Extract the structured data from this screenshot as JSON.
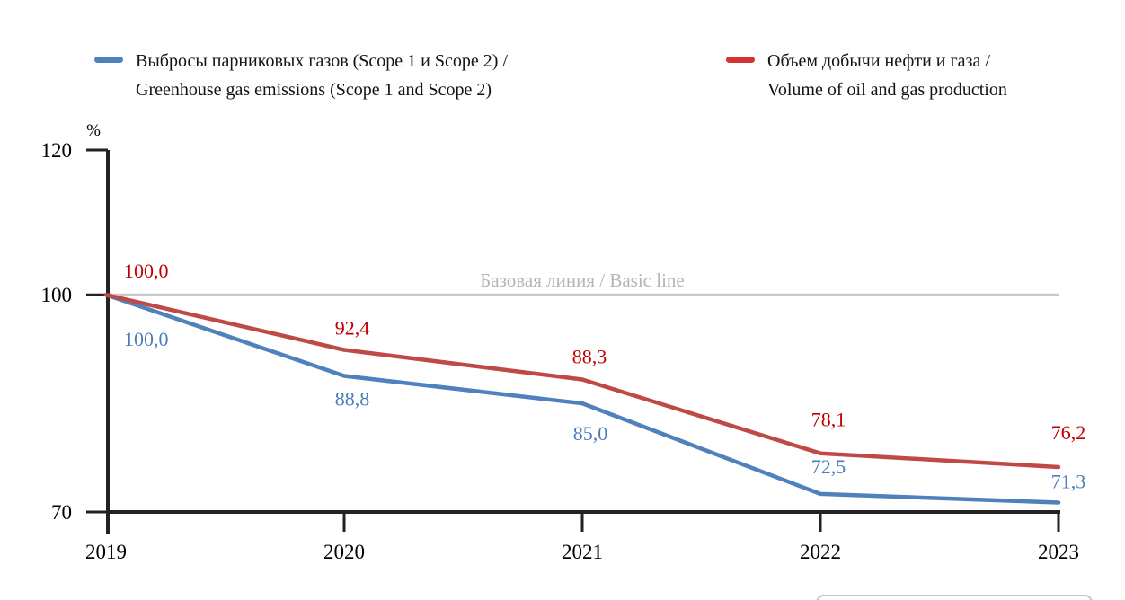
{
  "page": {
    "background": "#ffffff"
  },
  "legend": {
    "items": [
      {
        "id": "emissions",
        "label_line1": "Выбросы парниковых газов (Scope 1 и Scope 2) /",
        "label_line2": "Greenhouse gas emissions (Scope 1 and Scope 2)",
        "dash_color": "#4f81bd"
      },
      {
        "id": "production",
        "label_line1": "Объем добычи нефти и газа /",
        "label_line2": "Volume of oil and gas production",
        "dash_color": "#d23434"
      }
    ]
  },
  "chart_data": {
    "type": "line",
    "unit_label": "%",
    "categories": [
      "2019",
      "2020",
      "2021",
      "2022",
      "2023"
    ],
    "series": [
      {
        "id": "emissions",
        "name": "Выбросы парниковых газов (Scope 1 и Scope 2) / Greenhouse gas emissions (Scope 1 and Scope 2)",
        "color": "#4f81bd",
        "label_color": "#4a7ebb",
        "values": [
          100.0,
          88.8,
          85.0,
          72.5,
          71.3
        ],
        "value_labels": [
          "100,0",
          "88,8",
          "85,0",
          "72,5",
          "71,3"
        ]
      },
      {
        "id": "production",
        "name": "Объем добычи нефти и газа / Volume of oil and gas production",
        "color": "#bf4a45",
        "label_color": "#c00000",
        "values": [
          100.0,
          92.4,
          88.3,
          78.1,
          76.2
        ],
        "value_labels": [
          "100,0",
          "92,4",
          "88,3",
          "78,1",
          "76,2"
        ]
      }
    ],
    "baseline": {
      "value": 100,
      "label": "Базовая линия / Basic line",
      "line_color": "#c9c9c9",
      "label_color": "#b4b4ba"
    },
    "yticks": [
      120,
      100,
      70
    ],
    "ylim": [
      70,
      120
    ],
    "axis_color": "#222222",
    "tick_label_color": "#000000",
    "grid": false,
    "legend_position": "top"
  }
}
